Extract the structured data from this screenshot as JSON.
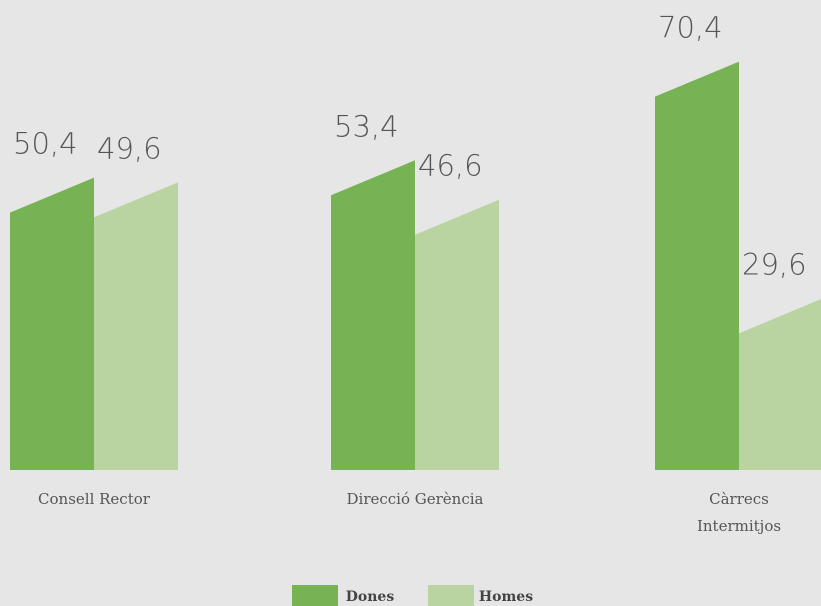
{
  "chart_data": {
    "type": "bar",
    "categories": [
      "Consell Rector",
      "Direcció Gerència",
      "Càrrecs Intermitjos"
    ],
    "series": [
      {
        "name": "Dones",
        "color": "#77b255",
        "values": [
          50.4,
          53.4,
          70.4
        ],
        "value_labels": [
          "50,4",
          "53,4",
          "70,4"
        ]
      },
      {
        "name": "Homes",
        "color": "#b9d4a0",
        "values": [
          49.6,
          46.6,
          29.6
        ],
        "value_labels": [
          "49,6",
          "46,6",
          "29,6"
        ]
      }
    ],
    "legend": "bottom"
  }
}
